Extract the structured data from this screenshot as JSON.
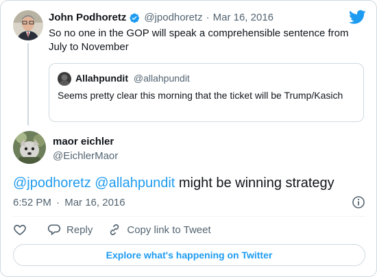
{
  "parent_tweet": {
    "author_name": "John Podhoretz",
    "handle": "@jpodhoretz",
    "separator": "·",
    "date": "Mar 16, 2016",
    "text": "So no one in the GOP will speak a comprehensible sentence from July to November",
    "quoted_tweet": {
      "author_name": "Allahpundit",
      "handle": "@allahpundit",
      "text": "Seems pretty clear this morning that the ticket will be Trump/Kasich"
    }
  },
  "main_tweet": {
    "author_name": "maor eichler",
    "handle": "@EichlerMaor",
    "mention_1": "@jpodhoretz",
    "mention_2": "@allahpundit",
    "text_rest": "might be winning strategy",
    "time": "6:52 PM",
    "separator": "·",
    "date": "Mar 16, 2016"
  },
  "actions": {
    "reply_label": "Reply",
    "copy_link_label": "Copy link to Tweet"
  },
  "explore_label": "Explore what's happening on Twitter",
  "colors": {
    "accent": "#1d9bf0",
    "text": "#0f1419",
    "muted": "#536471",
    "border": "#cfd9de"
  }
}
